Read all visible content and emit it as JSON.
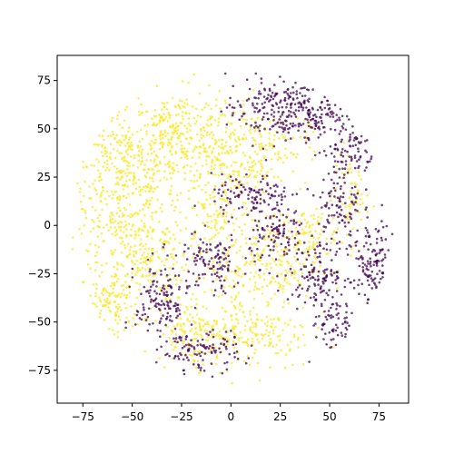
{
  "chart_data": {
    "type": "scatter",
    "title": "",
    "xlabel": "",
    "ylabel": "",
    "xlim": [
      -88,
      90
    ],
    "ylim": [
      -92,
      88
    ],
    "grid": false,
    "legend": "none",
    "x_ticks": [
      -75,
      -50,
      -25,
      0,
      25,
      50,
      75
    ],
    "y_ticks": [
      -75,
      -50,
      -25,
      0,
      25,
      50,
      75
    ],
    "x_tick_labels": [
      "−75",
      "−50",
      "−25",
      "0",
      "25",
      "50",
      "75"
    ],
    "y_tick_labels": [
      "−75",
      "−50",
      "−25",
      "0",
      "25",
      "50",
      "75"
    ],
    "point_radius_data": 82,
    "series": [
      {
        "color": "#fde725",
        "clusters": [
          {
            "cx": -55,
            "cy": 25,
            "rx": 24,
            "ry": 38,
            "n": 380
          },
          {
            "cx": -28,
            "cy": 45,
            "rx": 20,
            "ry": 22,
            "n": 240
          },
          {
            "cx": -45,
            "cy": -15,
            "rx": 22,
            "ry": 22,
            "n": 220
          },
          {
            "cx": -60,
            "cy": -40,
            "rx": 14,
            "ry": 16,
            "n": 110
          },
          {
            "cx": -5,
            "cy": 15,
            "rx": 18,
            "ry": 55,
            "n": 320
          },
          {
            "cx": 15,
            "cy": 40,
            "rx": 22,
            "ry": 18,
            "n": 160
          },
          {
            "cx": 20,
            "cy": -20,
            "rx": 22,
            "ry": 22,
            "n": 200
          },
          {
            "cx": 10,
            "cy": -55,
            "rx": 28,
            "ry": 18,
            "n": 200
          },
          {
            "cx": -22,
            "cy": -55,
            "rx": 14,
            "ry": 14,
            "n": 110
          },
          {
            "cx": 40,
            "cy": -5,
            "rx": 12,
            "ry": 12,
            "n": 80
          },
          {
            "cx": 60,
            "cy": 15,
            "rx": 8,
            "ry": 22,
            "n": 70
          }
        ]
      },
      {
        "color": "#440154",
        "clusters": [
          {
            "cx": 20,
            "cy": 60,
            "rx": 20,
            "ry": 16,
            "n": 170
          },
          {
            "cx": 42,
            "cy": 60,
            "rx": 14,
            "ry": 14,
            "n": 120
          },
          {
            "cx": 60,
            "cy": 40,
            "rx": 12,
            "ry": 14,
            "n": 90
          },
          {
            "cx": 55,
            "cy": 10,
            "rx": 10,
            "ry": 18,
            "n": 90
          },
          {
            "cx": 10,
            "cy": 15,
            "rx": 18,
            "ry": 10,
            "n": 110
          },
          {
            "cx": 25,
            "cy": -5,
            "rx": 14,
            "ry": 14,
            "n": 110
          },
          {
            "cx": -10,
            "cy": -20,
            "rx": 14,
            "ry": 14,
            "n": 110
          },
          {
            "cx": 45,
            "cy": -25,
            "rx": 14,
            "ry": 14,
            "n": 130
          },
          {
            "cx": 72,
            "cy": -20,
            "rx": 10,
            "ry": 20,
            "n": 110
          },
          {
            "cx": 52,
            "cy": -50,
            "rx": 10,
            "ry": 14,
            "n": 70
          },
          {
            "cx": -35,
            "cy": -40,
            "rx": 12,
            "ry": 20,
            "n": 140
          },
          {
            "cx": -15,
            "cy": -65,
            "rx": 18,
            "ry": 10,
            "n": 110
          }
        ]
      }
    ]
  }
}
